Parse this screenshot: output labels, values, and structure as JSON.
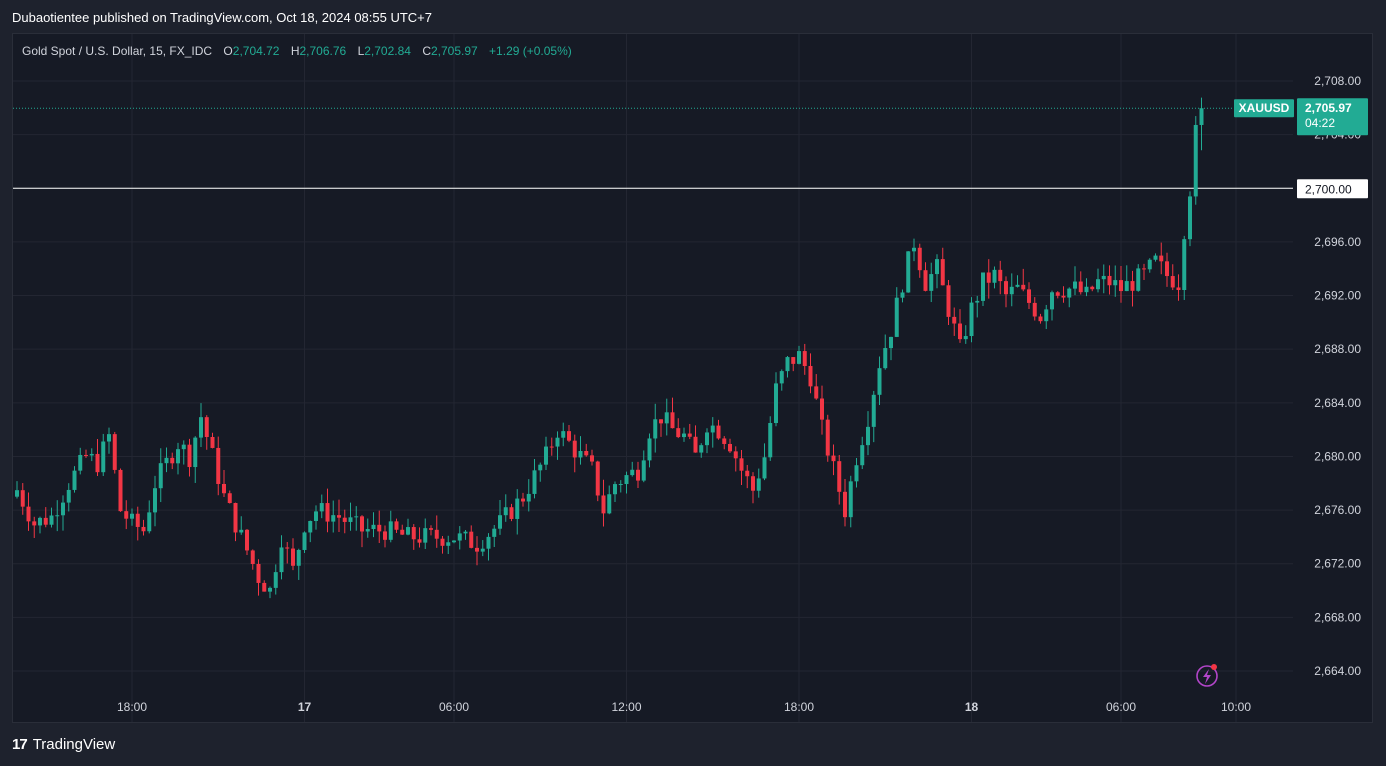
{
  "header": {
    "text": "Dubaotientee published on TradingView.com, Oct 18, 2024 08:55 UTC+7"
  },
  "legend": {
    "symbol": "Gold Spot / U.S. Dollar, 15, FX_IDC",
    "o_label": "O",
    "o_value": "2,704.72",
    "h_label": "H",
    "h_value": "2,706.76",
    "l_label": "L",
    "l_value": "2,702.84",
    "c_label": "C",
    "c_value": "2,705.97",
    "change": "+1.29 (+0.05%)"
  },
  "price_tag": {
    "symbol": "XAUUSD",
    "price": "2,705.97",
    "countdown": "04:22"
  },
  "level_tag": {
    "price": "2,700.00"
  },
  "footer": {
    "brand": "TradingView",
    "logo": "17"
  },
  "colors": {
    "up": "#22ab94",
    "down": "#f23645",
    "bg": "#161a25",
    "grid": "#232632",
    "text": "#d1d4dc"
  },
  "chart_data": {
    "type": "candlestick",
    "title": "Gold Spot / U.S. Dollar, 15, FX_IDC",
    "ylim": [
      2662,
      2712
    ],
    "yticks": [
      "2,664.00",
      "2,668.00",
      "2,672.00",
      "2,676.00",
      "2,680.00",
      "2,684.00",
      "2,688.00",
      "2,692.00",
      "2,696.00",
      "2,700.00",
      "2,704.00",
      "2,708.00"
    ],
    "yticks_values": [
      2664,
      2668,
      2672,
      2676,
      2680,
      2684,
      2688,
      2692,
      2696,
      2700,
      2704,
      2708
    ],
    "xticks": [
      {
        "label": "18:00",
        "index": 20,
        "bold": false
      },
      {
        "label": "17",
        "index": 50,
        "bold": true
      },
      {
        "label": "06:00",
        "index": 76,
        "bold": false
      },
      {
        "label": "12:00",
        "index": 106,
        "bold": false
      },
      {
        "label": "18:00",
        "index": 136,
        "bold": false
      },
      {
        "label": "18",
        "index": 166,
        "bold": true
      },
      {
        "label": "06:00",
        "index": 192,
        "bold": false
      },
      {
        "label": "10:00",
        "index": 212,
        "bold": false
      }
    ],
    "horizontal_line": 2700.0,
    "last_price": 2705.97,
    "candles": []
  }
}
